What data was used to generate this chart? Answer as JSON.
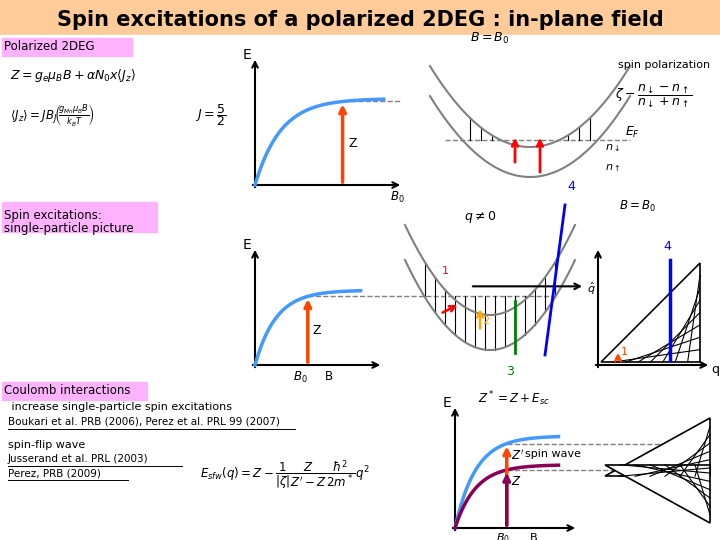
{
  "title": "Spin excitations of a polarized 2DEG : in-plane field",
  "bg_color": "#FFCC99",
  "white_bg": "#FFFFFF",
  "label_pink": "#FFB3FF",
  "blue_curve": "#4499FF",
  "orange_arrow": "#FF4400",
  "purple_curve": "#880055",
  "section1_label": "Polarized 2DEG",
  "section2_label": "Spin excitations:\nsingle-particle picture",
  "section3_label": "Coulomb interactions"
}
